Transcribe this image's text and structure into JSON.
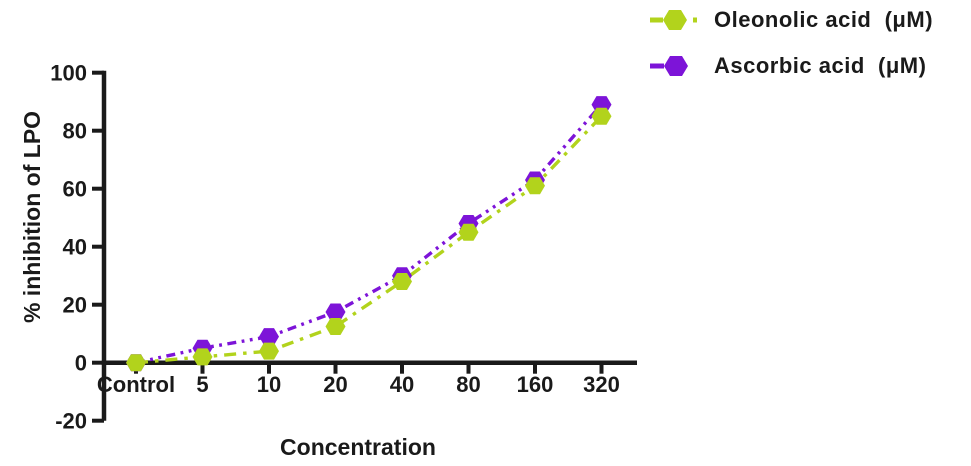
{
  "chart_data": {
    "type": "line",
    "title": "",
    "xlabel": "Concentration",
    "ylabel": "% inhibition of LPO",
    "categories": [
      "Control",
      "5",
      "10",
      "20",
      "40",
      "80",
      "160",
      "320"
    ],
    "y_ticks": [
      100,
      80,
      60,
      40,
      20,
      0,
      -20
    ],
    "ylim": [
      -20,
      100
    ],
    "grid": false,
    "legend_position": "top-right",
    "axis_color": "#1a1a1a",
    "series": [
      {
        "name": "Oleonolic acid  (μM)",
        "color": "#b2d31c",
        "marker": "hexagon",
        "line_style": "dash-dot",
        "values": [
          0,
          2,
          4,
          12.5,
          28,
          45,
          61,
          85
        ]
      },
      {
        "name": "Ascorbic acid  (μM)",
        "color": "#7d14d8",
        "marker": "hexagon",
        "line_style": "dash-dot-dot",
        "values": [
          0,
          5,
          9,
          17.5,
          30,
          48,
          63,
          89
        ]
      }
    ]
  }
}
